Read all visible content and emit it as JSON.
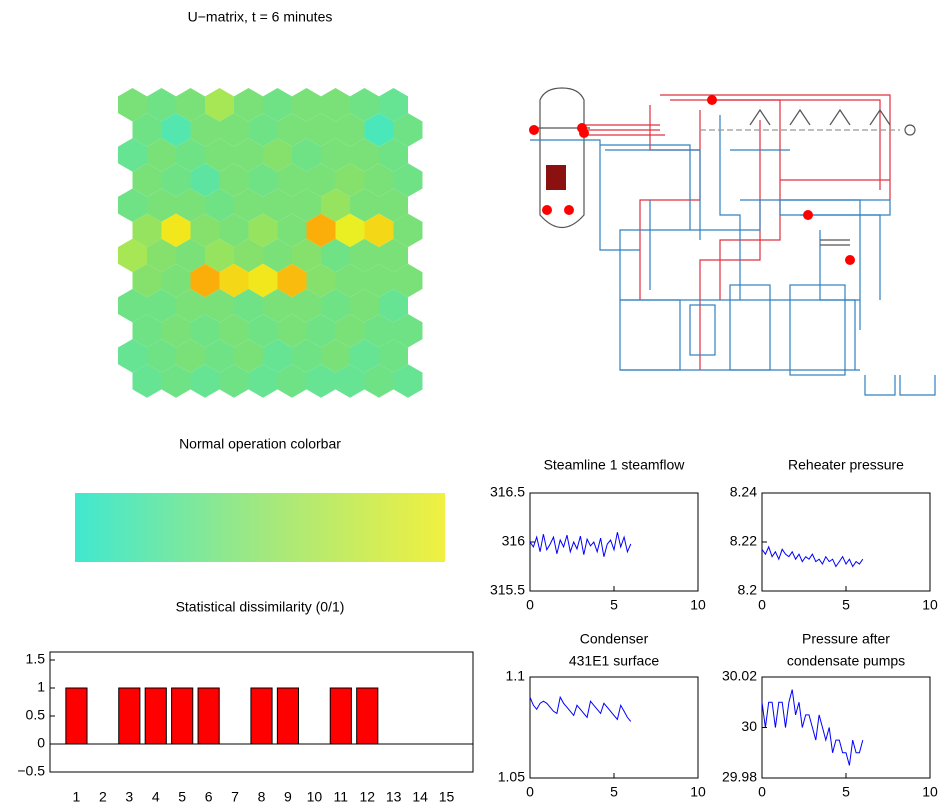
{
  "chart_data": [
    {
      "type": "hexmap",
      "title": "U−matrix, t = 6 minutes",
      "colormap": [
        "#40e8c8",
        "#80e070",
        "#f0f020",
        "#ff9000"
      ],
      "values": [
        [
          0.3,
          0.25,
          0.3,
          0.45,
          0.3,
          0.25,
          0.3,
          0.3,
          0.25,
          0.2
        ],
        [
          0.25,
          0.1,
          0.3,
          0.3,
          0.25,
          0.3,
          0.3,
          0.3,
          0.05,
          0.25
        ],
        [
          0.2,
          0.3,
          0.25,
          0.3,
          0.3,
          0.35,
          0.25,
          0.3,
          0.3,
          0.25
        ],
        [
          0.3,
          0.25,
          0.15,
          0.3,
          0.25,
          0.3,
          0.3,
          0.35,
          0.3,
          0.25
        ],
        [
          0.25,
          0.3,
          0.3,
          0.25,
          0.3,
          0.3,
          0.3,
          0.4,
          0.3,
          0.3
        ],
        [
          0.4,
          0.7,
          0.35,
          0.3,
          0.4,
          0.3,
          0.9,
          0.65,
          0.75,
          0.3
        ],
        [
          0.45,
          0.35,
          0.3,
          0.4,
          0.35,
          0.3,
          0.35,
          0.25,
          0.3,
          0.3
        ],
        [
          0.35,
          0.3,
          0.9,
          0.75,
          0.7,
          0.85,
          0.35,
          0.3,
          0.3,
          0.3
        ],
        [
          0.25,
          0.25,
          0.3,
          0.3,
          0.25,
          0.3,
          0.3,
          0.25,
          0.3,
          0.2
        ],
        [
          0.25,
          0.3,
          0.25,
          0.3,
          0.25,
          0.3,
          0.25,
          0.3,
          0.25,
          0.25
        ],
        [
          0.2,
          0.25,
          0.3,
          0.25,
          0.3,
          0.2,
          0.25,
          0.3,
          0.2,
          0.25
        ],
        [
          0.2,
          0.25,
          0.2,
          0.25,
          0.2,
          0.25,
          0.2,
          0.2,
          0.25,
          0.2
        ]
      ]
    },
    {
      "type": "colorbar",
      "title": "Normal operation colorbar",
      "colormap": [
        "#40e8d0",
        "#a0e880",
        "#f0f040"
      ]
    },
    {
      "type": "bar",
      "title": "Statistical dissimilarity (0/1)",
      "color": "#ff0000",
      "categories": [
        "1",
        "2",
        "3",
        "4",
        "5",
        "6",
        "7",
        "8",
        "9",
        "10",
        "11",
        "12",
        "13",
        "14",
        "15"
      ],
      "values": [
        1,
        0,
        1,
        1,
        1,
        1,
        0,
        1,
        1,
        0,
        1,
        1,
        0,
        0,
        0
      ],
      "ylim": [
        -0.5,
        1.5
      ],
      "yticks": [
        {
          "value": -0.5,
          "label": "−0.5"
        },
        0,
        0.5,
        1,
        1.5
      ]
    },
    {
      "type": "line",
      "title": "Steamline 1 steamflow",
      "color": "#0000ff",
      "x": [
        0,
        0.2,
        0.4,
        0.6,
        0.8,
        1,
        1.2,
        1.4,
        1.6,
        1.8,
        2,
        2.2,
        2.4,
        2.6,
        2.8,
        3,
        3.2,
        3.4,
        3.6,
        3.8,
        4,
        4.2,
        4.4,
        4.6,
        4.8,
        5,
        5.2,
        5.4,
        5.6,
        5.8,
        6
      ],
      "values": [
        316.0,
        315.95,
        316.05,
        315.9,
        316.08,
        315.92,
        315.98,
        316.05,
        315.88,
        316.02,
        315.95,
        316.07,
        315.9,
        316.0,
        315.93,
        316.06,
        315.87,
        316.03,
        315.96,
        316.0,
        315.9,
        316.04,
        315.85,
        315.98,
        316.02,
        315.92,
        316.1,
        315.95,
        316.05,
        315.9,
        315.98
      ],
      "xlim": [
        0,
        10
      ],
      "xticks": [
        0,
        5,
        10
      ],
      "ylim": [
        315.5,
        316.5
      ],
      "yticks": [
        315.5,
        316,
        316.5
      ]
    },
    {
      "type": "line",
      "title": "Reheater pressure",
      "color": "#0000ff",
      "x": [
        0,
        0.2,
        0.4,
        0.6,
        0.8,
        1,
        1.2,
        1.4,
        1.6,
        1.8,
        2,
        2.2,
        2.4,
        2.6,
        2.8,
        3,
        3.2,
        3.4,
        3.6,
        3.8,
        4,
        4.2,
        4.4,
        4.6,
        4.8,
        5,
        5.2,
        5.4,
        5.6,
        5.8,
        6
      ],
      "values": [
        8.217,
        8.215,
        8.218,
        8.214,
        8.216,
        8.213,
        8.217,
        8.215,
        8.214,
        8.216,
        8.213,
        8.215,
        8.212,
        8.214,
        8.213,
        8.215,
        8.212,
        8.213,
        8.211,
        8.214,
        8.212,
        8.213,
        8.21,
        8.212,
        8.214,
        8.211,
        8.213,
        8.21,
        8.212,
        8.211,
        8.213
      ],
      "xlim": [
        0,
        10
      ],
      "xticks": [
        0,
        5,
        10
      ],
      "ylim": [
        8.2,
        8.24
      ],
      "yticks": [
        8.2,
        8.22,
        8.24
      ]
    },
    {
      "type": "line",
      "title": [
        "Condenser",
        "431E1 surface"
      ],
      "color": "#0000ff",
      "x": [
        0,
        0.2,
        0.4,
        0.6,
        0.8,
        1,
        1.2,
        1.4,
        1.6,
        1.8,
        2,
        2.2,
        2.4,
        2.6,
        2.8,
        3,
        3.2,
        3.4,
        3.6,
        3.8,
        4,
        4.2,
        4.4,
        4.6,
        4.8,
        5,
        5.2,
        5.4,
        5.6,
        5.8,
        6
      ],
      "values": [
        1.09,
        1.086,
        1.084,
        1.087,
        1.088,
        1.087,
        1.085,
        1.083,
        1.082,
        1.09,
        1.087,
        1.085,
        1.083,
        1.081,
        1.086,
        1.084,
        1.082,
        1.08,
        1.088,
        1.086,
        1.084,
        1.082,
        1.087,
        1.085,
        1.083,
        1.081,
        1.079,
        1.086,
        1.083,
        1.08,
        1.078
      ],
      "xlim": [
        0,
        10
      ],
      "xticks": [
        0,
        5,
        10
      ],
      "ylim": [
        1.05,
        1.1
      ],
      "yticks": [
        1.05,
        1.1
      ]
    },
    {
      "type": "line",
      "title": [
        "Pressure after",
        "condensate pumps"
      ],
      "color": "#0000ff",
      "x": [
        0,
        0.2,
        0.4,
        0.6,
        0.8,
        1,
        1.2,
        1.4,
        1.6,
        1.8,
        2,
        2.2,
        2.4,
        2.6,
        2.8,
        3,
        3.2,
        3.4,
        3.6,
        3.8,
        4,
        4.2,
        4.4,
        4.6,
        4.8,
        5,
        5.2,
        5.4,
        5.6,
        5.8,
        6
      ],
      "values": [
        30.01,
        30,
        30.01,
        30.01,
        30,
        30.01,
        30.01,
        30,
        30.01,
        30.015,
        30.005,
        30.01,
        30,
        30.005,
        30.005,
        30,
        29.995,
        30.005,
        30,
        29.995,
        30,
        29.99,
        29.995,
        29.995,
        29.99,
        29.99,
        29.985,
        29.995,
        29.99,
        29.99,
        29.995
      ],
      "xlim": [
        0,
        10
      ],
      "xticks": [
        0,
        5,
        10
      ],
      "ylim": [
        29.98,
        30.02
      ],
      "yticks": [
        29.98,
        30,
        30.02
      ]
    }
  ]
}
